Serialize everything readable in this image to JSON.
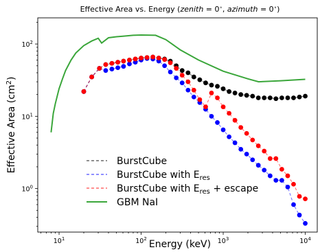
{
  "chart_data": {
    "type": "line",
    "title": {
      "prefix": "Effective Area vs. Energy (",
      "zenith": "zenith",
      "zenith_val": " = 0",
      "deg1": "∘",
      "sep": ", ",
      "azimuth": "azimuth",
      "azimuth_val": " = 0",
      "deg2": "∘",
      "suffix": ")"
    },
    "xlabel": "Energy (keV)",
    "ylabel": {
      "text": "Effective Area (cm",
      "sup": "2",
      "close": ")"
    },
    "xscale": "log",
    "yscale": "log",
    "xlim": [
      5.5,
      14000
    ],
    "ylim": [
      0.25,
      230
    ],
    "x_ticks": [
      {
        "value": 10,
        "base": "10",
        "exp": "1"
      },
      {
        "value": 100,
        "base": "10",
        "exp": "2"
      },
      {
        "value": 1000,
        "base": "10",
        "exp": "3"
      },
      {
        "value": 10000,
        "base": "10",
        "exp": "4"
      }
    ],
    "y_ticks": [
      {
        "value": 1,
        "base": "10",
        "exp": "0"
      },
      {
        "value": 10,
        "base": "10",
        "exp": "1"
      },
      {
        "value": 100,
        "base": "10",
        "exp": "2"
      }
    ],
    "legend_position": "lower-left",
    "series": [
      {
        "name": "BurstCube",
        "legend": {
          "text": "BurstCube",
          "sub": "",
          "suffix": ""
        },
        "color": "#000000",
        "style": "dashed-markers",
        "x": [
          20,
          25,
          31,
          37,
          44,
          52,
          61,
          72,
          85,
          100,
          118,
          139,
          164,
          193,
          227,
          268,
          316,
          373,
          439,
          518,
          611,
          720,
          849,
          1000,
          1180,
          1390,
          1640,
          1930,
          2280,
          2680,
          3160,
          3730,
          4390,
          5180,
          6110,
          7200,
          8490,
          10000
        ],
        "y": [
          22,
          35,
          46,
          52,
          54,
          56,
          58,
          60,
          62,
          64,
          65,
          66,
          64,
          62,
          58,
          50,
          43,
          40,
          35,
          32,
          29,
          27,
          26,
          24,
          22,
          21,
          20,
          19.5,
          19,
          18,
          18,
          18,
          17.5,
          18,
          18,
          18,
          18.5,
          19
        ]
      },
      {
        "name": "BurstCube with E_res",
        "legend": {
          "text": "BurstCube with E",
          "sub": "res",
          "suffix": ""
        },
        "color": "#0000ff",
        "style": "dashed-markers",
        "x": [
          20,
          25,
          31,
          37,
          44,
          52,
          61,
          72,
          85,
          100,
          118,
          139,
          164,
          193,
          227,
          268,
          316,
          373,
          439,
          518,
          611,
          720,
          849,
          1000,
          1180,
          1390,
          1640,
          1930,
          2280,
          2680,
          3160,
          3730,
          4390,
          5180,
          6110,
          7200,
          8490,
          10000
        ],
        "y": [
          22,
          35,
          46,
          43,
          45,
          47,
          49,
          53,
          56,
          60,
          63,
          62,
          58,
          50,
          41,
          34,
          29,
          23,
          18.5,
          15.5,
          12.5,
          10,
          8.2,
          6.5,
          5.2,
          4.3,
          3.5,
          3,
          2.5,
          2.1,
          1.8,
          1.5,
          1.3,
          1.3,
          1.05,
          0.6,
          0.43,
          0.33
        ]
      },
      {
        "name": "BurstCube with E_res + escape",
        "legend": {
          "text": "BurstCube with E",
          "sub": "res",
          "suffix": " + escape"
        },
        "color": "#ff0000",
        "style": "dashed-markers",
        "x": [
          20,
          25,
          31,
          37,
          44,
          52,
          61,
          72,
          85,
          100,
          118,
          139,
          164,
          193,
          227,
          268,
          316,
          373,
          439,
          518,
          611,
          720,
          849,
          1000,
          1180,
          1390,
          1640,
          1930,
          2280,
          2680,
          3160,
          3730,
          4390,
          5180,
          6110,
          7200,
          8490,
          10000
        ],
        "y": [
          22,
          35,
          46,
          52,
          54,
          56,
          58,
          60,
          62,
          64,
          65,
          66,
          64,
          61,
          55,
          46,
          37,
          30,
          23,
          17,
          13.5,
          21,
          18,
          13.5,
          11,
          8.8,
          7,
          5.8,
          4.7,
          3.9,
          3.3,
          2.6,
          2.6,
          1.85,
          1.5,
          1.15,
          0.78,
          0.72
        ]
      },
      {
        "name": "GBM NaI",
        "legend": {
          "text": "GBM NaI",
          "sub": "",
          "suffix": ""
        },
        "color": "#3aa63a",
        "style": "solid",
        "x": [
          8,
          8.5,
          9,
          10,
          11,
          12,
          14,
          16,
          20,
          25,
          30,
          33,
          40,
          50,
          60,
          80,
          100,
          150,
          200,
          300,
          500,
          1000,
          2000,
          2700,
          5000,
          10000
        ],
        "y": [
          6,
          11,
          15,
          24,
          33,
          43,
          60,
          75,
          95,
          110,
          120,
          103,
          122,
          126,
          128,
          132,
          133,
          132,
          115,
          83,
          60,
          42,
          33,
          30,
          31,
          32.5
        ]
      }
    ]
  }
}
